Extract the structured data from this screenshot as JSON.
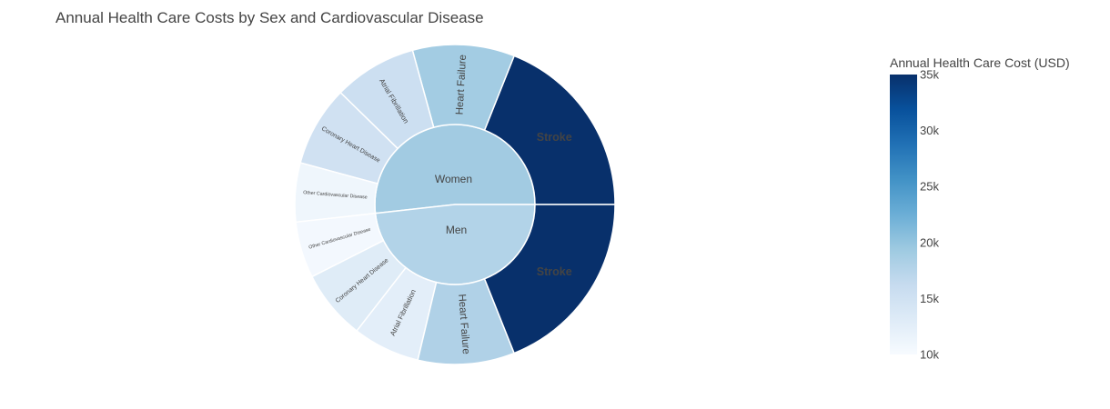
{
  "chart_data": {
    "type": "sunburst",
    "title": "Annual Health Care Costs by Sex and Cardiovascular Disease",
    "colorbar": {
      "title": "Annual Health Care Cost (USD)",
      "range": [
        10000,
        35000
      ],
      "tick_labels": [
        "10k",
        "15k",
        "20k",
        "25k",
        "30k",
        "35k"
      ],
      "tick_values": [
        10000,
        15000,
        20000,
        25000,
        30000,
        35000
      ],
      "colorscale": [
        "#f7fbff",
        "#deebf7",
        "#c6dbef",
        "#9ecae1",
        "#6baed6",
        "#4292c6",
        "#2171b5",
        "#08519c",
        "#08306b"
      ]
    },
    "groups": [
      {
        "label": "Women",
        "children": [
          {
            "label": "Stroke",
            "value": 35000
          },
          {
            "label": "Heart Failure",
            "value": 19000
          },
          {
            "label": "Atrial Fibrillation",
            "value": 15500
          },
          {
            "label": "Coronary Heart Disease",
            "value": 15000
          },
          {
            "label": "Other Cardiovascular Disease",
            "value": 11000
          }
        ]
      },
      {
        "label": "Men",
        "children": [
          {
            "label": "Other Cardiovascular Disease",
            "value": 10500
          },
          {
            "label": "Coronary Heart Disease",
            "value": 13000
          },
          {
            "label": "Atrial Fibrillation",
            "value": 12500
          },
          {
            "label": "Heart Failure",
            "value": 18000
          },
          {
            "label": "Stroke",
            "value": 35000
          }
        ]
      }
    ]
  }
}
